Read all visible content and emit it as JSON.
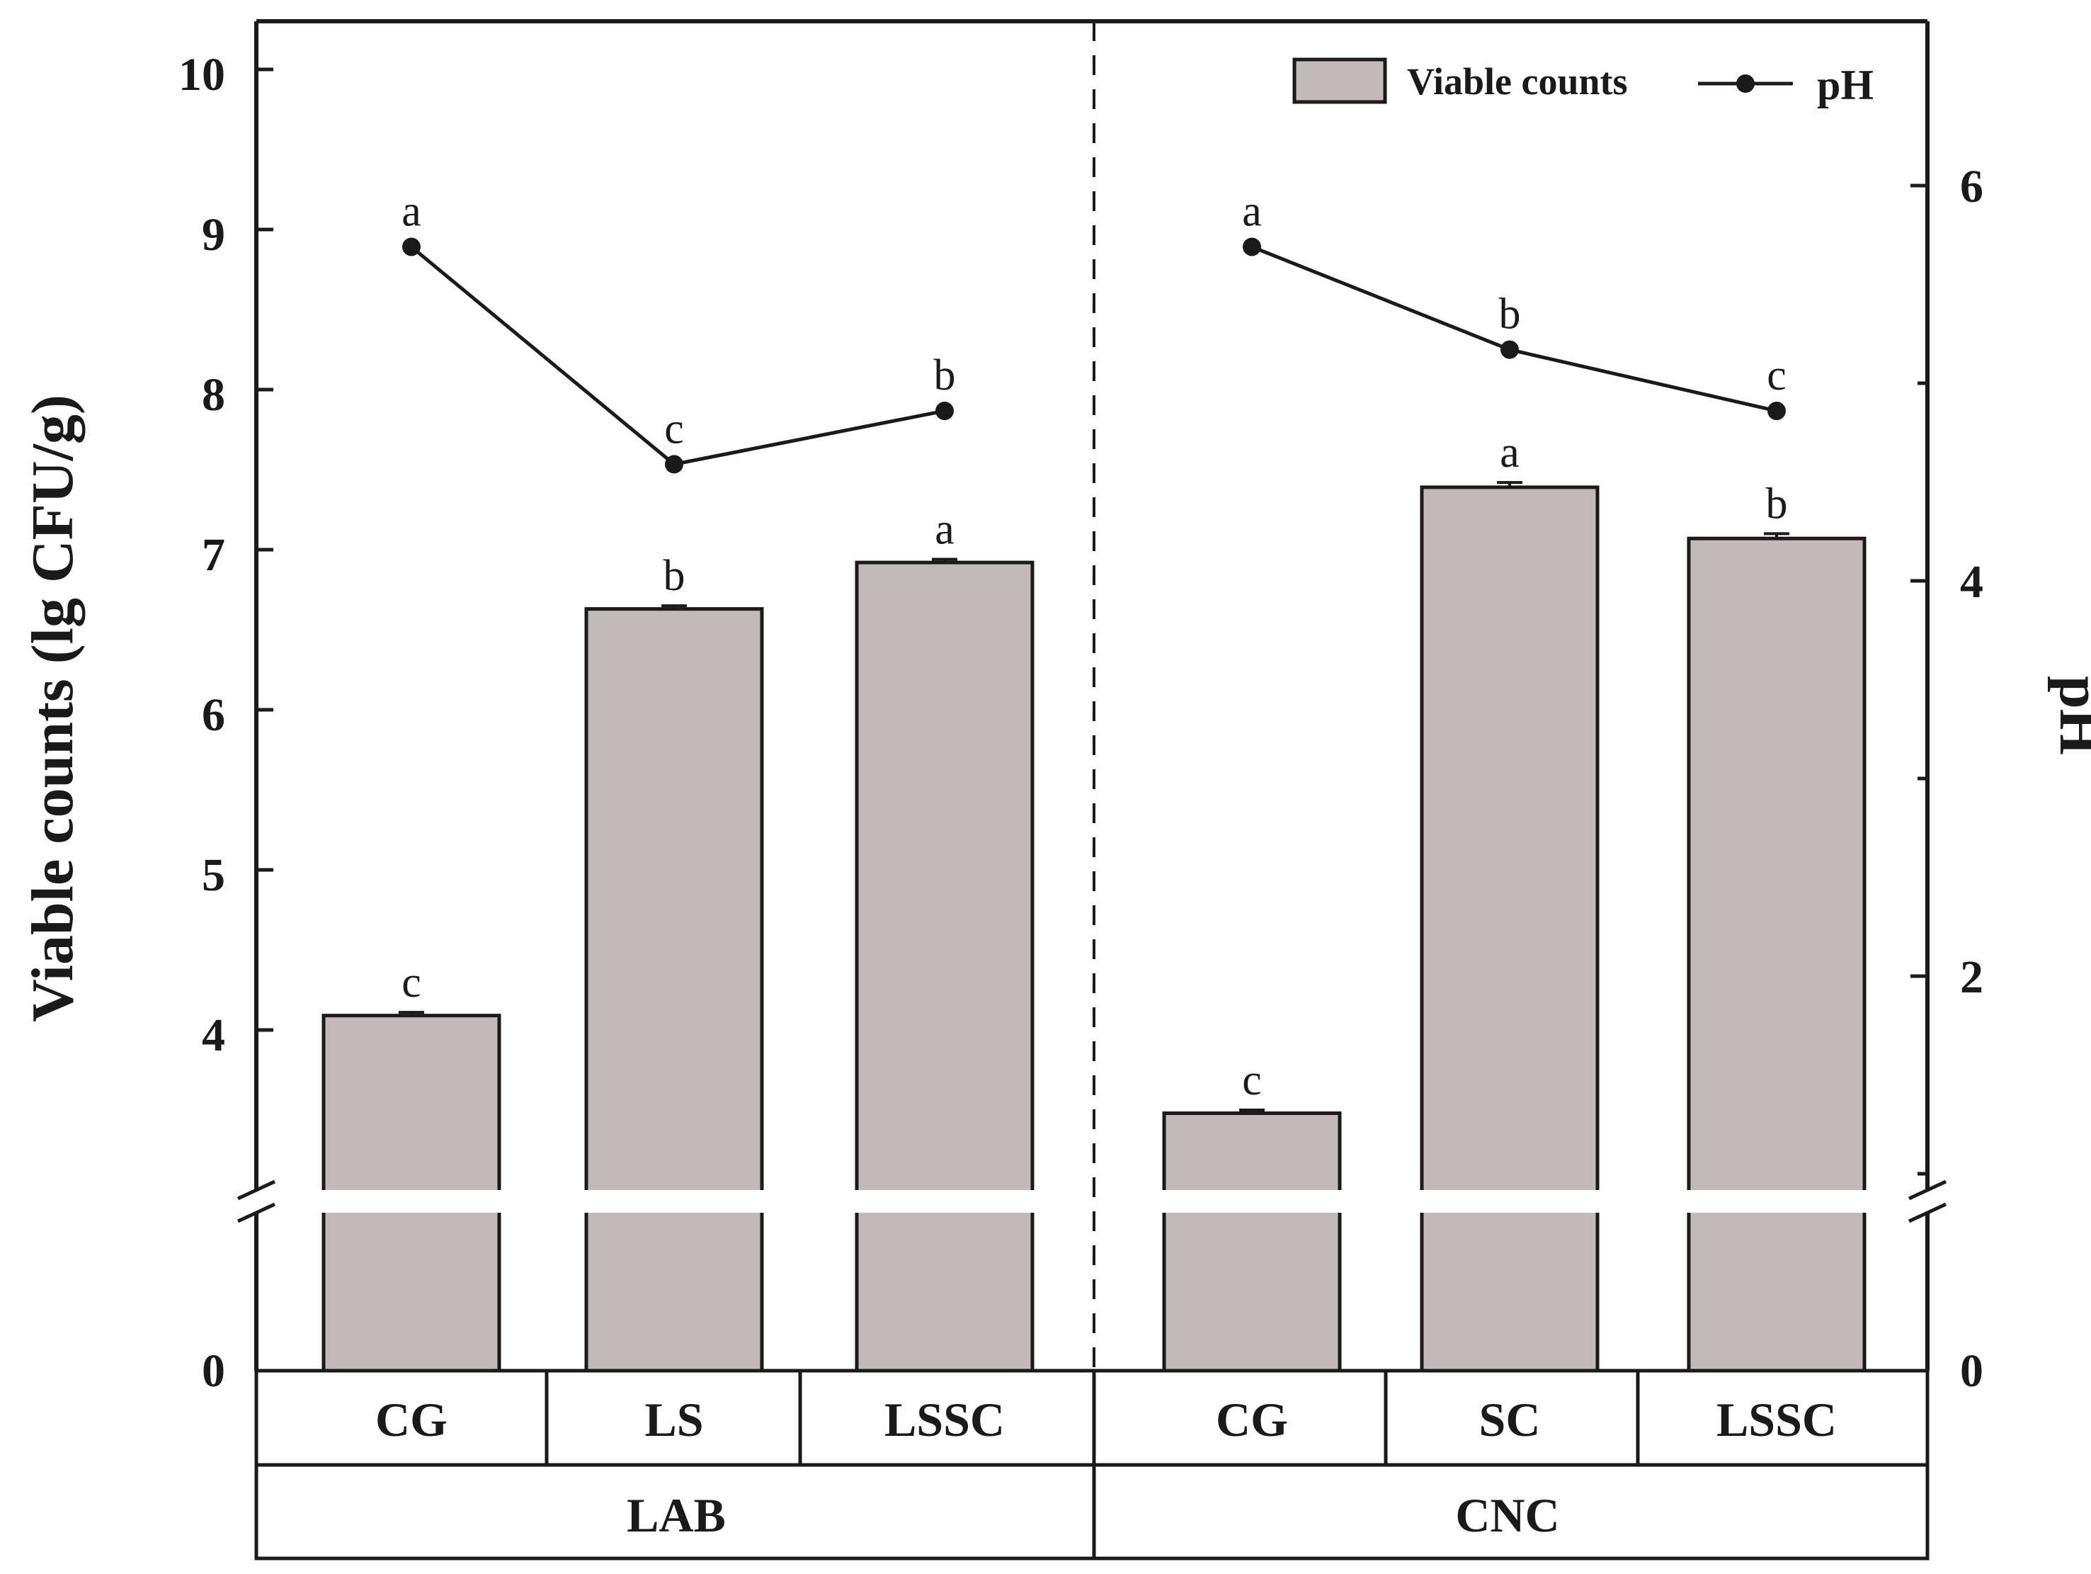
{
  "chart_data": {
    "type": "bar+line",
    "y_left": {
      "label": "Viable counts (lg CFU/g)",
      "ticks": [
        "0",
        "4",
        "5",
        "6",
        "7",
        "8",
        "9",
        "10"
      ],
      "break": [
        0,
        3
      ],
      "range": [
        3,
        10.3
      ]
    },
    "y_right": {
      "label": "pH",
      "ticks": [
        "0",
        "2",
        "4",
        "6"
      ],
      "range": [
        1,
        6.9
      ]
    },
    "legend": {
      "position": "top-right",
      "bar_label": "Viable counts",
      "line_label": "pH"
    },
    "groups": [
      {
        "label": "LAB",
        "categories": [
          {
            "label": "CG",
            "viable": 4.09,
            "viable_err": 0.02,
            "viable_letter": "c",
            "ph": 5.69,
            "ph_letter": "a"
          },
          {
            "label": "LS",
            "viable": 6.63,
            "viable_err": 0.02,
            "viable_letter": "b",
            "ph": 4.59,
            "ph_letter": "c"
          },
          {
            "label": "LSSC",
            "viable": 6.92,
            "viable_err": 0.02,
            "viable_letter": "a",
            "ph": 4.86,
            "ph_letter": "b"
          }
        ]
      },
      {
        "label": "CNC",
        "categories": [
          {
            "label": "CG",
            "viable": 3.48,
            "viable_err": 0.02,
            "viable_letter": "c",
            "ph": 5.69,
            "ph_letter": "a"
          },
          {
            "label": "SC",
            "viable": 7.39,
            "viable_err": 0.03,
            "viable_letter": "a",
            "ph": 5.17,
            "ph_letter": "b"
          },
          {
            "label": "LSSC",
            "viable": 7.07,
            "viable_err": 0.03,
            "viable_letter": "b",
            "ph": 4.86,
            "ph_letter": "c"
          }
        ]
      }
    ],
    "colors": {
      "bar_fill": "#c2b9b8",
      "stroke": "#1a1a1a"
    }
  }
}
